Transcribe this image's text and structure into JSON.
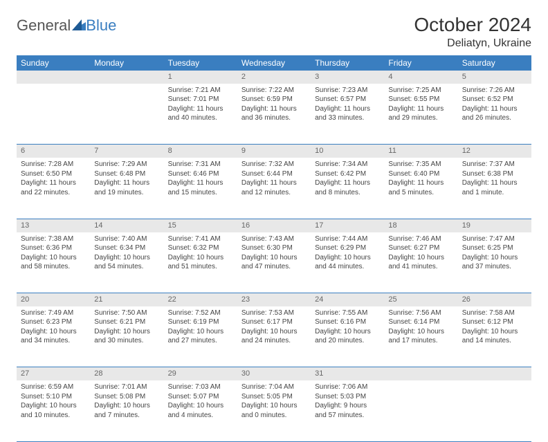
{
  "brand": {
    "part1": "General",
    "part2": "Blue"
  },
  "title": "October 2024",
  "location": "Deliatyn, Ukraine",
  "colors": {
    "accent": "#3a7ec0",
    "daynum_bg": "#e8e8e8",
    "text": "#444444"
  },
  "weekday_labels": [
    "Sunday",
    "Monday",
    "Tuesday",
    "Wednesday",
    "Thursday",
    "Friday",
    "Saturday"
  ],
  "grid": [
    [
      null,
      null,
      {
        "n": "1",
        "sr": "Sunrise: 7:21 AM",
        "ss": "Sunset: 7:01 PM",
        "dl": "Daylight: 11 hours and 40 minutes."
      },
      {
        "n": "2",
        "sr": "Sunrise: 7:22 AM",
        "ss": "Sunset: 6:59 PM",
        "dl": "Daylight: 11 hours and 36 minutes."
      },
      {
        "n": "3",
        "sr": "Sunrise: 7:23 AM",
        "ss": "Sunset: 6:57 PM",
        "dl": "Daylight: 11 hours and 33 minutes."
      },
      {
        "n": "4",
        "sr": "Sunrise: 7:25 AM",
        "ss": "Sunset: 6:55 PM",
        "dl": "Daylight: 11 hours and 29 minutes."
      },
      {
        "n": "5",
        "sr": "Sunrise: 7:26 AM",
        "ss": "Sunset: 6:52 PM",
        "dl": "Daylight: 11 hours and 26 minutes."
      }
    ],
    [
      {
        "n": "6",
        "sr": "Sunrise: 7:28 AM",
        "ss": "Sunset: 6:50 PM",
        "dl": "Daylight: 11 hours and 22 minutes."
      },
      {
        "n": "7",
        "sr": "Sunrise: 7:29 AM",
        "ss": "Sunset: 6:48 PM",
        "dl": "Daylight: 11 hours and 19 minutes."
      },
      {
        "n": "8",
        "sr": "Sunrise: 7:31 AM",
        "ss": "Sunset: 6:46 PM",
        "dl": "Daylight: 11 hours and 15 minutes."
      },
      {
        "n": "9",
        "sr": "Sunrise: 7:32 AM",
        "ss": "Sunset: 6:44 PM",
        "dl": "Daylight: 11 hours and 12 minutes."
      },
      {
        "n": "10",
        "sr": "Sunrise: 7:34 AM",
        "ss": "Sunset: 6:42 PM",
        "dl": "Daylight: 11 hours and 8 minutes."
      },
      {
        "n": "11",
        "sr": "Sunrise: 7:35 AM",
        "ss": "Sunset: 6:40 PM",
        "dl": "Daylight: 11 hours and 5 minutes."
      },
      {
        "n": "12",
        "sr": "Sunrise: 7:37 AM",
        "ss": "Sunset: 6:38 PM",
        "dl": "Daylight: 11 hours and 1 minute."
      }
    ],
    [
      {
        "n": "13",
        "sr": "Sunrise: 7:38 AM",
        "ss": "Sunset: 6:36 PM",
        "dl": "Daylight: 10 hours and 58 minutes."
      },
      {
        "n": "14",
        "sr": "Sunrise: 7:40 AM",
        "ss": "Sunset: 6:34 PM",
        "dl": "Daylight: 10 hours and 54 minutes."
      },
      {
        "n": "15",
        "sr": "Sunrise: 7:41 AM",
        "ss": "Sunset: 6:32 PM",
        "dl": "Daylight: 10 hours and 51 minutes."
      },
      {
        "n": "16",
        "sr": "Sunrise: 7:43 AM",
        "ss": "Sunset: 6:30 PM",
        "dl": "Daylight: 10 hours and 47 minutes."
      },
      {
        "n": "17",
        "sr": "Sunrise: 7:44 AM",
        "ss": "Sunset: 6:29 PM",
        "dl": "Daylight: 10 hours and 44 minutes."
      },
      {
        "n": "18",
        "sr": "Sunrise: 7:46 AM",
        "ss": "Sunset: 6:27 PM",
        "dl": "Daylight: 10 hours and 41 minutes."
      },
      {
        "n": "19",
        "sr": "Sunrise: 7:47 AM",
        "ss": "Sunset: 6:25 PM",
        "dl": "Daylight: 10 hours and 37 minutes."
      }
    ],
    [
      {
        "n": "20",
        "sr": "Sunrise: 7:49 AM",
        "ss": "Sunset: 6:23 PM",
        "dl": "Daylight: 10 hours and 34 minutes."
      },
      {
        "n": "21",
        "sr": "Sunrise: 7:50 AM",
        "ss": "Sunset: 6:21 PM",
        "dl": "Daylight: 10 hours and 30 minutes."
      },
      {
        "n": "22",
        "sr": "Sunrise: 7:52 AM",
        "ss": "Sunset: 6:19 PM",
        "dl": "Daylight: 10 hours and 27 minutes."
      },
      {
        "n": "23",
        "sr": "Sunrise: 7:53 AM",
        "ss": "Sunset: 6:17 PM",
        "dl": "Daylight: 10 hours and 24 minutes."
      },
      {
        "n": "24",
        "sr": "Sunrise: 7:55 AM",
        "ss": "Sunset: 6:16 PM",
        "dl": "Daylight: 10 hours and 20 minutes."
      },
      {
        "n": "25",
        "sr": "Sunrise: 7:56 AM",
        "ss": "Sunset: 6:14 PM",
        "dl": "Daylight: 10 hours and 17 minutes."
      },
      {
        "n": "26",
        "sr": "Sunrise: 7:58 AM",
        "ss": "Sunset: 6:12 PM",
        "dl": "Daylight: 10 hours and 14 minutes."
      }
    ],
    [
      {
        "n": "27",
        "sr": "Sunrise: 6:59 AM",
        "ss": "Sunset: 5:10 PM",
        "dl": "Daylight: 10 hours and 10 minutes."
      },
      {
        "n": "28",
        "sr": "Sunrise: 7:01 AM",
        "ss": "Sunset: 5:08 PM",
        "dl": "Daylight: 10 hours and 7 minutes."
      },
      {
        "n": "29",
        "sr": "Sunrise: 7:03 AM",
        "ss": "Sunset: 5:07 PM",
        "dl": "Daylight: 10 hours and 4 minutes."
      },
      {
        "n": "30",
        "sr": "Sunrise: 7:04 AM",
        "ss": "Sunset: 5:05 PM",
        "dl": "Daylight: 10 hours and 0 minutes."
      },
      {
        "n": "31",
        "sr": "Sunrise: 7:06 AM",
        "ss": "Sunset: 5:03 PM",
        "dl": "Daylight: 9 hours and 57 minutes."
      },
      null,
      null
    ]
  ]
}
